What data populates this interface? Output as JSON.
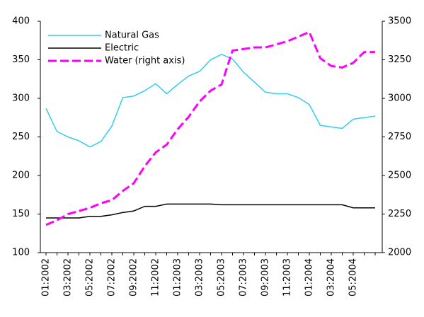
{
  "chart_data": {
    "type": "line",
    "categories": [
      "01:2002",
      null,
      "03:2002",
      null,
      "05:2002",
      null,
      "07:2002",
      null,
      "09:2002",
      null,
      "11:2002",
      null,
      "01:2003",
      null,
      "03:2003",
      null,
      "05:2003",
      null,
      "07:2003",
      null,
      "09:2003",
      null,
      "11:2003",
      null,
      "01:2004",
      null,
      "03:2004",
      null,
      "05:2004",
      null,
      null
    ],
    "series": [
      {
        "name": "Natural Gas",
        "color": "#33ccee",
        "values": [
          287,
          257,
          250,
          245,
          237,
          244,
          264,
          301,
          303,
          310,
          319,
          306,
          318,
          329,
          335,
          350,
          357,
          351,
          334,
          321,
          308,
          306,
          306,
          301,
          292,
          265,
          263,
          261,
          273,
          275,
          277
        ]
      },
      {
        "name": "Electric",
        "color": "#000000",
        "values": [
          145,
          145,
          145,
          145,
          147,
          147,
          149,
          152,
          154,
          160,
          160,
          163,
          163,
          163,
          163,
          163,
          162,
          162,
          162,
          162,
          162,
          162,
          162,
          162,
          162,
          162,
          162,
          162,
          158,
          158,
          158
        ]
      },
      {
        "name": "Water (right axis)",
        "color": "#ff00ff",
        "axis": "y2",
        "dashed": true,
        "values": [
          2180,
          2210,
          2250,
          2270,
          2290,
          2320,
          2340,
          2400,
          2450,
          2560,
          2650,
          2700,
          2800,
          2880,
          2980,
          3050,
          3090,
          3310,
          3320,
          3330,
          3330,
          3350,
          3370,
          3400,
          3430,
          3260,
          3210,
          3200,
          3230,
          3300,
          3300
        ]
      }
    ],
    "ylim": [
      100,
      400
    ],
    "yticks": [
      100,
      150,
      200,
      250,
      300,
      350,
      400
    ],
    "y2lim": [
      2000,
      3500
    ],
    "y2ticks": [
      2000,
      2250,
      2500,
      2750,
      3000,
      3250,
      3500
    ],
    "grid": false,
    "legend": "top-left"
  }
}
